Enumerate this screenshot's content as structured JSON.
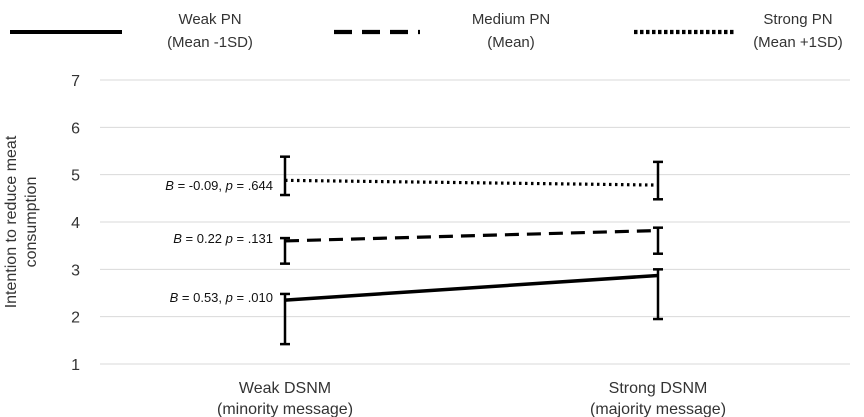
{
  "chart_data": {
    "type": "line",
    "title": "",
    "xlabel": "",
    "ylabel": "Intention to reduce meat consumption",
    "ylabel_lines": [
      "Intention to reduce meat",
      "consumption"
    ],
    "categories": [
      {
        "line1": "Weak DSNM",
        "line2": "(minority message)"
      },
      {
        "line1": "Strong DSNM",
        "line2": "(majority message)"
      }
    ],
    "ylim": [
      1,
      7
    ],
    "yticks": [
      1,
      2,
      3,
      4,
      5,
      6,
      7
    ],
    "grid": "horizontal",
    "legend_position": "top",
    "series": [
      {
        "name": "Weak PN (Mean -1SD)",
        "legend_line1": "Weak PN",
        "legend_line2": "(Mean -1SD)",
        "style": "solid",
        "values": [
          2.35,
          2.87
        ],
        "error_low": [
          1.42,
          1.95
        ],
        "error_high": [
          2.48,
          3.0
        ],
        "annotation": {
          "B": "0.53",
          "p": ".010"
        }
      },
      {
        "name": "Medium PN (Mean)",
        "legend_line1": "Medium PN",
        "legend_line2": "(Mean)",
        "style": "dashed",
        "values": [
          3.6,
          3.82
        ],
        "error_low": [
          3.12,
          3.33
        ],
        "error_high": [
          3.66,
          3.88
        ],
        "annotation": {
          "B": "0.22",
          "p": ".131"
        }
      },
      {
        "name": "Strong PN (Mean +1SD)",
        "legend_line1": "Strong PN",
        "legend_line2": "(Mean +1SD)",
        "style": "dotted",
        "values": [
          4.88,
          4.78
        ],
        "error_low": [
          4.57,
          4.48
        ],
        "error_high": [
          5.38,
          5.27
        ],
        "annotation": {
          "B": "-0.09",
          "p": ".644"
        }
      }
    ],
    "colors": {
      "line": "#000000",
      "grid": "#d9d9d9",
      "text": "#333333"
    }
  }
}
